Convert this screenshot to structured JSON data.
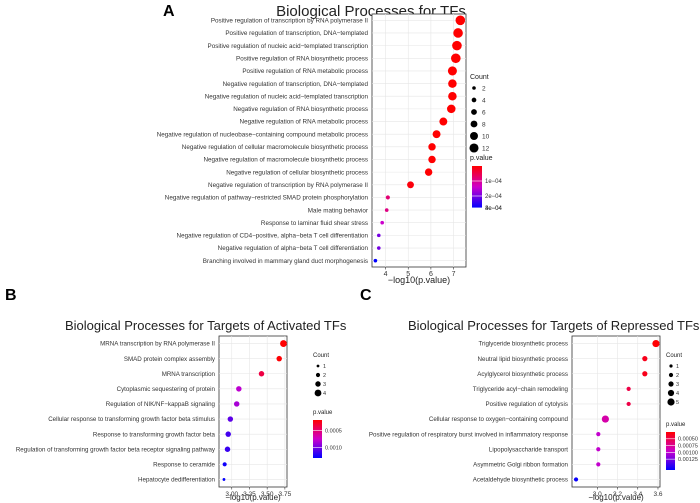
{
  "panels": [
    {
      "letter": "A",
      "chart_data": {
        "type": "scatter",
        "title": "Biological Processes for TFs",
        "xlabel": "−log10(p.value)",
        "ylabel": "",
        "xlim": [
          3.4,
          7.55
        ],
        "xticks": [
          4,
          5,
          6,
          7
        ],
        "xtick_labels": [
          "4",
          "5",
          "6",
          "7"
        ],
        "grid": true,
        "categories": [
          "Positive regulation of transcription by RNA polymerase II",
          "Positive regulation of transcription, DNA−templated",
          "Positive regulation of nucleic acid−templated transcription",
          "Positive regulation of RNA biosynthetic process",
          "Positive regulation of RNA metabolic process",
          "Negative regulation of transcription, DNA−templated",
          "Negative regulation of nucleic acid−templated transcription",
          "Negative regulation of RNA biosynthetic process",
          "Negative regulation of RNA metabolic process",
          "Negative regulation of nucleobase−containing compound metabolic process",
          "Negative regulation of cellular macromolecule biosynthetic process",
          "Negative regulation of macromolecule biosynthetic process",
          "Negative regulation of cellular biosynthetic process",
          "Negative regulation of transcription by RNA polymerase II",
          "Negative regulation of pathway−restricted SMAD protein phosphorylation",
          "Male mating behavior",
          "Response to laminar fluid shear stress",
          "Negative regulation of CD4−positive, alpha−beta T cell differentiation",
          "Negative regulation of alpha−beta T cell differentiation",
          "Branching involved in mammary gland duct morphogenesis"
        ],
        "x": [
          7.3,
          7.2,
          7.15,
          7.1,
          6.95,
          6.95,
          6.95,
          6.9,
          6.55,
          6.25,
          6.05,
          6.05,
          5.9,
          5.1,
          4.1,
          4.05,
          3.85,
          3.7,
          3.7,
          3.55
        ],
        "count": [
          13,
          13,
          13,
          13,
          12,
          11,
          11,
          11,
          10,
          10,
          9,
          9,
          9,
          8,
          3,
          2,
          2,
          2,
          2,
          2
        ],
        "pvalue": [
          5e-08,
          6e-08,
          7e-08,
          8e-08,
          1.1e-07,
          1.1e-07,
          1.1e-07,
          1.3e-07,
          2.8e-07,
          5.6e-07,
          8.9e-07,
          8.9e-07,
          1.3e-06,
          7.9e-06,
          7.9e-05,
          8.9e-05,
          0.00014,
          0.0002,
          0.0002,
          0.00028
        ],
        "size_legend": {
          "title": "Count",
          "values": [
            2,
            4,
            6,
            8,
            10,
            12
          ],
          "labels": [
            "2",
            "4",
            "6",
            "8",
            "10",
            "12"
          ]
        },
        "color_legend": {
          "title": "p.value",
          "min": 0,
          "max": 0.00028,
          "ticks": [
            0.0001,
            0.0002,
            0.0003,
            0.0004
          ],
          "labels": [
            "1e−04",
            "2e−04",
            "3e−04",
            "4e−04"
          ]
        }
      }
    },
    {
      "letter": "B",
      "chart_data": {
        "type": "scatter",
        "title": "Biological Processes for Targets of Activated TFs",
        "xlabel": "−log10(p.value)",
        "ylabel": "",
        "xlim": [
          2.82,
          3.78
        ],
        "xticks": [
          3.0,
          3.25,
          3.5,
          3.75
        ],
        "xtick_labels": [
          "3.00",
          "3.25",
          "3.50",
          "3.75"
        ],
        "grid": true,
        "categories": [
          "MRNA transcription by RNA polymerase II",
          "SMAD protein complex assembly",
          "MRNA transcription",
          "Cytoplasmic sequestering of protein",
          "Regulation of NIK/NF−kappaB signaling",
          "Cellular response to transforming growth factor beta stimulus",
          "Response to transforming growth factor beta",
          "Regulation of transforming growth factor beta receptor signaling pathway",
          "Response to ceramide",
          "Hepatocyte dedifferentiation"
        ],
        "x": [
          3.73,
          3.67,
          3.42,
          3.1,
          3.07,
          2.98,
          2.95,
          2.94,
          2.9,
          2.89
        ],
        "count": [
          4,
          3,
          3,
          3,
          3,
          3,
          3,
          3,
          2,
          1
        ],
        "pvalue": [
          0.00019,
          0.00021,
          0.00038,
          0.00079,
          0.00085,
          0.00105,
          0.00112,
          0.00115,
          0.00126,
          0.00129
        ],
        "size_legend": {
          "title": "Count",
          "values": [
            1,
            2,
            3,
            4
          ],
          "labels": [
            "1",
            "2",
            "3",
            "4"
          ]
        },
        "color_legend": {
          "title": "p.value",
          "min": 0.0002,
          "max": 0.0013,
          "ticks": [
            0.0005,
            0.001
          ],
          "labels": [
            "0.0005",
            "0.0010"
          ]
        }
      }
    },
    {
      "letter": "C",
      "chart_data": {
        "type": "scatter",
        "title": "Biological Processes for Targets of Repressed TFs",
        "xlabel": "−log10(p.value)",
        "ylabel": "",
        "xlim": [
          2.75,
          3.62
        ],
        "xticks": [
          3.0,
          3.2,
          3.4,
          3.6
        ],
        "xtick_labels": [
          "3.0",
          "3.2",
          "3.4",
          "3.6"
        ],
        "grid": true,
        "categories": [
          "Triglyceride biosynthetic process",
          "Neutral lipid biosynthetic process",
          "Acylglycerol biosynthetic process",
          "Triglyceride acyl−chain remodeling",
          "Positive regulation of cytolysis",
          "Cellular response to oxygen−containing compound",
          "Positive regulation of respiratory burst involved in inflammatory response",
          "Lipopolysaccharide transport",
          "Asymmetric Golgi ribbon formation",
          "Acetaldehyde biosynthetic process"
        ],
        "x": [
          3.58,
          3.47,
          3.47,
          3.31,
          3.31,
          3.08,
          3.01,
          3.01,
          3.01,
          2.79
        ],
        "count": [
          5,
          3,
          3,
          2,
          2,
          5,
          2,
          2,
          2,
          2
        ],
        "pvalue": [
          0.00026,
          0.00034,
          0.00034,
          0.00049,
          0.00049,
          0.00083,
          0.00098,
          0.00098,
          0.00098,
          0.00162
        ],
        "size_legend": {
          "title": "Count",
          "values": [
            1,
            2,
            3,
            4,
            5
          ],
          "labels": [
            "1",
            "2",
            "3",
            "4",
            "5"
          ]
        },
        "color_legend": {
          "title": "p.value",
          "min": 0.00025,
          "max": 0.00165,
          "ticks": [
            0.0005,
            0.00075,
            0.001,
            0.00125
          ],
          "labels": [
            "0.00050",
            "0.00075",
            "0.00100",
            "0.00125"
          ]
        }
      }
    }
  ]
}
